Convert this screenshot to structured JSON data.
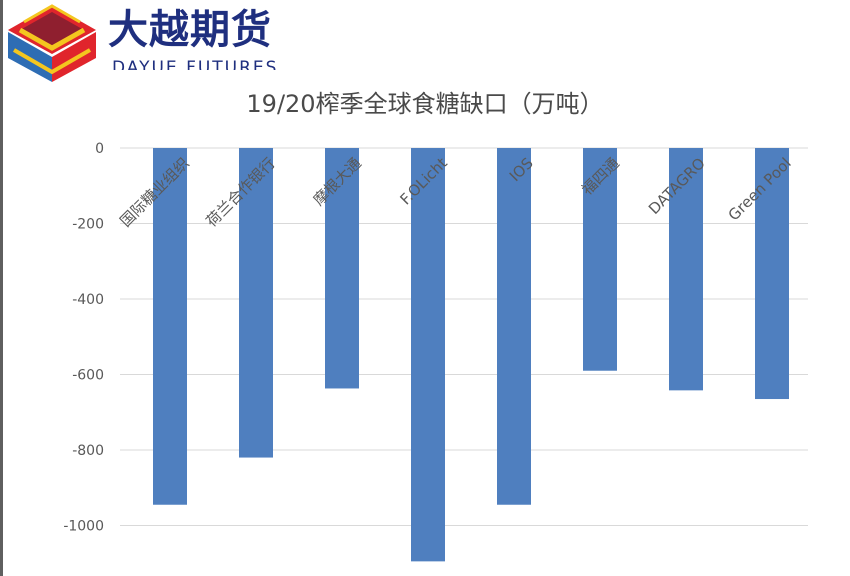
{
  "brand": {
    "name_cn": "大越期货",
    "name_en": "DAYUE FUTURES"
  },
  "colors": {
    "bar": "#4f7fbf",
    "grid": "#d9d9d9",
    "axis_text": "#595959",
    "brand_blue": "#1f2f7f",
    "logo_red": "#e0252c",
    "logo_yellow": "#f4c61f",
    "logo_darkred": "#8f1f2f",
    "logo_blue": "#2e6db4"
  },
  "chart_data": {
    "type": "bar",
    "title": "19/20榨季全球食糖缺口（万吨）",
    "categories": [
      "国际糖业组织",
      "荷兰合作银行",
      "摩根大通",
      "F.OLicht",
      "IOS",
      "福四通",
      "DATAGRO",
      "Green Pool"
    ],
    "values": [
      -945,
      -820,
      -637,
      -1095,
      -945,
      -590,
      -642,
      -665
    ],
    "yticks": [
      0,
      -200,
      -400,
      -600,
      -800,
      -1000
    ],
    "ylim": [
      -1100,
      0
    ],
    "grid": true,
    "legend": "none"
  }
}
